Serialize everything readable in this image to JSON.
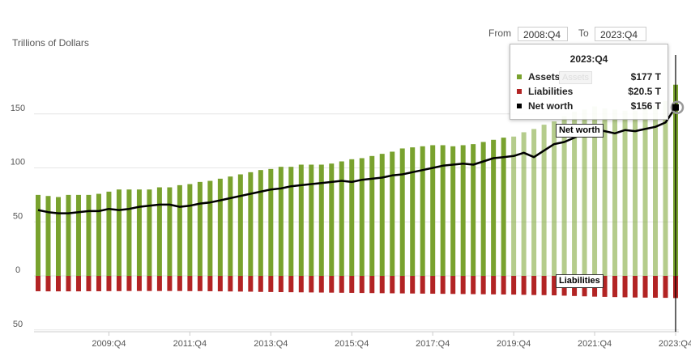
{
  "header": {
    "y_axis_title": "Trillions of Dollars",
    "from_label": "From",
    "from_value": "2008:Q4",
    "to_label": "To",
    "to_value": "2023:Q4"
  },
  "tooltip": {
    "title": "2023:Q4",
    "rows": [
      {
        "name": "Assets",
        "value": "$177 T",
        "color": "#79a22e"
      },
      {
        "name": "Liabilities",
        "value": "$20.5 T",
        "color": "#b22424"
      },
      {
        "name": "Net worth",
        "value": "$156 T",
        "color": "#000000"
      }
    ],
    "ghost_label": "Assets"
  },
  "labels": {
    "net_worth": "Net worth",
    "liabilities": "Liabilities"
  },
  "chart_data": {
    "type": "bar",
    "ylabel": "Trillions of Dollars",
    "ylim": [
      -50,
      175
    ],
    "y_ticks": [
      {
        "value": 150,
        "label": "150"
      },
      {
        "value": 100,
        "label": "100"
      },
      {
        "value": 50,
        "label": "50"
      },
      {
        "value": 0,
        "label": "0"
      },
      {
        "value": -50,
        "label": "50"
      }
    ],
    "x_ticks": [
      "2009:Q4",
      "2011:Q4",
      "2013:Q4",
      "2015:Q4",
      "2017:Q4",
      "2019:Q4",
      "2021:Q4",
      "2023:Q4"
    ],
    "categories": [
      "2008:Q1",
      "2008:Q2",
      "2008:Q3",
      "2008:Q4",
      "2009:Q1",
      "2009:Q2",
      "2009:Q3",
      "2009:Q4",
      "2010:Q1",
      "2010:Q2",
      "2010:Q3",
      "2010:Q4",
      "2011:Q1",
      "2011:Q2",
      "2011:Q3",
      "2011:Q4",
      "2012:Q1",
      "2012:Q2",
      "2012:Q3",
      "2012:Q4",
      "2013:Q1",
      "2013:Q2",
      "2013:Q3",
      "2013:Q4",
      "2014:Q1",
      "2014:Q2",
      "2014:Q3",
      "2014:Q4",
      "2015:Q1",
      "2015:Q2",
      "2015:Q3",
      "2015:Q4",
      "2016:Q1",
      "2016:Q2",
      "2016:Q3",
      "2016:Q4",
      "2017:Q1",
      "2017:Q2",
      "2017:Q3",
      "2017:Q4",
      "2018:Q1",
      "2018:Q2",
      "2018:Q3",
      "2018:Q4",
      "2019:Q1",
      "2019:Q2",
      "2019:Q3",
      "2019:Q4",
      "2020:Q1",
      "2020:Q2",
      "2020:Q3",
      "2020:Q4",
      "2021:Q1",
      "2021:Q2",
      "2021:Q3",
      "2021:Q4",
      "2022:Q1",
      "2022:Q2",
      "2022:Q3",
      "2022:Q4",
      "2023:Q1",
      "2023:Q2",
      "2023:Q3",
      "2023:Q4"
    ],
    "series": [
      {
        "name": "Assets",
        "color": "#79a22e",
        "values": [
          75,
          74,
          73,
          75,
          75,
          75,
          76,
          78,
          80,
          80,
          80,
          80,
          82,
          82,
          84,
          85,
          87,
          88,
          90,
          92,
          94,
          96,
          98,
          99,
          101,
          101,
          103,
          103,
          103,
          104,
          106,
          108,
          109,
          111,
          113,
          115,
          118,
          119,
          120,
          121,
          121,
          120,
          121,
          122,
          124,
          126,
          128,
          129,
          133,
          136,
          140,
          143,
          148,
          152,
          154,
          157,
          155,
          154,
          153,
          153,
          156,
          158,
          162,
          177
        ]
      },
      {
        "name": "Liabilities",
        "color": "#b22424",
        "values": [
          14.2,
          14.3,
          14.3,
          14.3,
          14.3,
          14.2,
          14.2,
          14.1,
          14.1,
          14.0,
          14.0,
          14.0,
          14.0,
          14.0,
          14.0,
          14.1,
          14.1,
          14.2,
          14.3,
          14.4,
          14.5,
          14.6,
          14.8,
          14.9,
          15.0,
          15.1,
          15.2,
          15.3,
          15.4,
          15.5,
          15.6,
          15.7,
          15.8,
          15.9,
          16.0,
          16.1,
          16.2,
          16.3,
          16.4,
          16.5,
          16.6,
          16.7,
          16.8,
          16.9,
          17.0,
          17.1,
          17.2,
          17.3,
          17.5,
          17.7,
          17.8,
          18.0,
          18.3,
          18.6,
          18.9,
          19.2,
          19.4,
          19.6,
          19.8,
          20.0,
          20.1,
          20.2,
          20.3,
          20.5
        ]
      },
      {
        "name": "Net worth",
        "color": "#000000",
        "values": [
          61,
          59,
          58,
          58,
          59,
          60,
          60,
          62,
          61,
          62,
          64,
          65,
          66,
          66,
          64,
          65,
          67,
          68,
          70,
          72,
          74,
          76,
          78,
          80,
          81,
          83,
          84,
          85,
          86,
          87,
          88,
          87,
          89,
          90,
          91,
          93,
          94,
          96,
          98,
          100,
          102,
          103,
          104,
          103,
          106,
          109,
          110,
          111,
          114,
          110,
          116,
          122,
          124,
          128,
          132,
          136,
          134,
          132,
          135,
          134,
          136,
          138,
          142,
          156
        ]
      }
    ]
  }
}
